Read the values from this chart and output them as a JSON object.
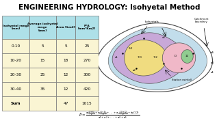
{
  "title": "ENGINEERING HYDROLOGY: Isohyetal Method",
  "title_bg": "#5dced8",
  "title_color": "black",
  "table_header_bg": "#aee0e8",
  "table_row_bg": "#faf5d3",
  "table_col_headers": [
    "Isohyetal range\n[mm]",
    "Average isohyetal\nrange\n[mm]",
    "Area [km2]",
    "P*A\n[mm*Km2]"
  ],
  "table_rows": [
    [
      "0-10",
      "5",
      "5",
      "25"
    ],
    [
      "10-20",
      "15",
      "18",
      "270"
    ],
    [
      "20-30",
      "25",
      "12",
      "300"
    ],
    [
      "30-40",
      "35",
      "12",
      "420"
    ],
    [
      "Sum",
      "",
      "47",
      "1015"
    ]
  ],
  "colors": {
    "outer_blue": "#b8d8e8",
    "purple_zone": "#c8a8d8",
    "yellow_zone": "#f0dc80",
    "pink_zone": "#f0b8c8",
    "green_zone": "#90cc90"
  }
}
